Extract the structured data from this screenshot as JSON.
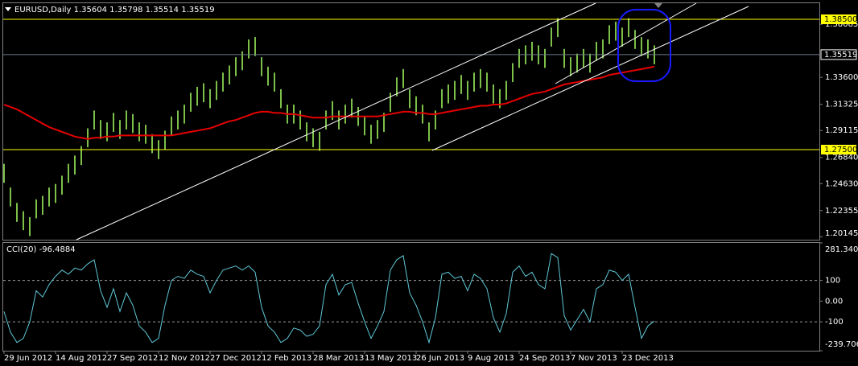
{
  "chart_data": [
    {
      "type": "ohlc",
      "title": "EURUSD,Daily 1.35604 1.35798 1.35514 1.35519",
      "color": "#7cc04a",
      "categories": [
        "29 Jun 2012",
        null,
        null,
        null,
        null,
        null,
        null,
        null,
        "14 Aug 2012",
        null,
        null,
        null,
        null,
        null,
        null,
        null,
        "27 Sep 2012",
        null,
        null,
        null,
        null,
        null,
        null,
        null,
        "12 Nov 2012",
        null,
        null,
        null,
        null,
        null,
        null,
        null,
        "27 Dec 2012",
        null,
        null,
        null,
        null,
        null,
        null,
        null,
        "12 Feb 2013",
        null,
        null,
        null,
        null,
        null,
        null,
        null,
        "28 Mar 2013",
        null,
        null,
        null,
        null,
        null,
        null,
        null,
        "13 May 2013",
        null,
        null,
        null,
        null,
        null,
        null,
        null,
        "26 Jun 2013",
        null,
        null,
        null,
        null,
        null,
        null,
        null,
        "9 Aug 2013",
        null,
        null,
        null,
        null,
        null,
        null,
        null,
        "24 Sep 2013",
        null,
        null,
        null,
        null,
        null,
        null,
        null,
        "7 Nov 2013",
        null,
        null,
        null,
        null,
        null,
        null,
        null,
        "23 Dec 2013",
        null,
        null,
        null,
        null,
        null
      ],
      "high": [
        1.263,
        1.243,
        1.23,
        1.223,
        1.218,
        1.233,
        1.236,
        1.243,
        1.246,
        1.253,
        1.263,
        1.27,
        1.278,
        1.293,
        1.308,
        1.3,
        1.298,
        1.306,
        1.3,
        1.308,
        1.305,
        1.298,
        1.296,
        1.288,
        1.283,
        1.291,
        1.303,
        1.308,
        1.313,
        1.323,
        1.328,
        1.331,
        1.326,
        1.333,
        1.34,
        1.346,
        1.353,
        1.358,
        1.368,
        1.37,
        1.353,
        1.345,
        1.34,
        1.326,
        1.313,
        1.313,
        1.308,
        1.298,
        1.293,
        1.29,
        1.308,
        1.316,
        1.308,
        1.313,
        1.318,
        1.311,
        1.303,
        1.296,
        1.3,
        1.306,
        1.323,
        1.336,
        1.343,
        1.326,
        1.32,
        1.313,
        1.298,
        1.308,
        1.326,
        1.33,
        1.333,
        1.338,
        1.333,
        1.34,
        1.343,
        1.34,
        1.33,
        1.326,
        1.333,
        1.348,
        1.36,
        1.363,
        1.366,
        1.363,
        1.36,
        1.378,
        1.386,
        1.36,
        1.353,
        1.356,
        1.36,
        1.356,
        1.366,
        1.368,
        1.38,
        1.383,
        1.378,
        1.386,
        1.376,
        1.37,
        1.368,
        1.363
      ],
      "low": [
        1.247,
        1.227,
        1.214,
        1.207,
        1.202,
        1.217,
        1.22,
        1.227,
        1.23,
        1.237,
        1.247,
        1.254,
        1.262,
        1.277,
        1.292,
        1.284,
        1.282,
        1.29,
        1.284,
        1.292,
        1.289,
        1.282,
        1.28,
        1.272,
        1.267,
        1.275,
        1.287,
        1.292,
        1.297,
        1.307,
        1.312,
        1.315,
        1.31,
        1.317,
        1.324,
        1.33,
        1.337,
        1.342,
        1.352,
        1.354,
        1.337,
        1.329,
        1.324,
        1.31,
        1.297,
        1.297,
        1.292,
        1.282,
        1.277,
        1.274,
        1.292,
        1.3,
        1.292,
        1.297,
        1.302,
        1.295,
        1.287,
        1.28,
        1.284,
        1.29,
        1.307,
        1.32,
        1.327,
        1.31,
        1.304,
        1.297,
        1.282,
        1.292,
        1.31,
        1.314,
        1.317,
        1.322,
        1.317,
        1.324,
        1.327,
        1.324,
        1.314,
        1.31,
        1.317,
        1.332,
        1.344,
        1.347,
        1.35,
        1.347,
        1.344,
        1.362,
        1.37,
        1.344,
        1.337,
        1.34,
        1.344,
        1.34,
        1.35,
        1.352,
        1.364,
        1.367,
        1.362,
        1.37,
        1.36,
        1.354,
        1.352,
        1.347
      ],
      "ma": {
        "color": "#e60000",
        "values": [
          1.313,
          1.311,
          1.309,
          1.306,
          1.303,
          1.3,
          1.297,
          1.294,
          1.292,
          1.29,
          1.288,
          1.286,
          1.285,
          1.284,
          1.285,
          1.285,
          1.286,
          1.286,
          1.287,
          1.287,
          1.287,
          1.287,
          1.287,
          1.287,
          1.287,
          1.287,
          1.287,
          1.288,
          1.289,
          1.29,
          1.291,
          1.292,
          1.293,
          1.295,
          1.297,
          1.299,
          1.3,
          1.302,
          1.304,
          1.306,
          1.307,
          1.307,
          1.306,
          1.306,
          1.305,
          1.305,
          1.304,
          1.303,
          1.302,
          1.302,
          1.302,
          1.303,
          1.303,
          1.303,
          1.303,
          1.303,
          1.303,
          1.303,
          1.303,
          1.304,
          1.305,
          1.306,
          1.307,
          1.307,
          1.306,
          1.306,
          1.305,
          1.305,
          1.306,
          1.307,
          1.308,
          1.309,
          1.31,
          1.311,
          1.312,
          1.312,
          1.313,
          1.313,
          1.314,
          1.316,
          1.318,
          1.32,
          1.322,
          1.323,
          1.324,
          1.326,
          1.328,
          1.33,
          1.331,
          1.332,
          1.333,
          1.334,
          1.335,
          1.336,
          1.338,
          1.339,
          1.34,
          1.341,
          1.342,
          1.343,
          1.344,
          1.345
        ]
      },
      "ylim": [
        1.19896,
        1.39858
      ],
      "yticks": [
        1.38085,
        {
          "value": 1.336,
          "label": "1.33600"
        },
        1.31325,
        1.29115,
        {
          "value": 1.2684,
          "label": "1.26840"
        },
        {
          "value": 1.2463,
          "label": "1.24630"
        },
        1.22355,
        1.20145
      ],
      "hlines": {
        "color": "#ffff00",
        "lines": [
          {
            "value": 1.385,
            "label": "1.38500"
          },
          {
            "value": 1.275,
            "label": "1.27500"
          }
        ]
      },
      "current_price": {
        "color": "#6c7a89",
        "value": 1.35519,
        "label": "1.35519"
      }
    },
    {
      "type": "line",
      "title": "CCI(20) -96.4884",
      "series": [
        {
          "color": "#5fc8d8",
          "values": [
            -50,
            -150,
            -200,
            -180,
            -100,
            50,
            20,
            80,
            120,
            150,
            130,
            160,
            150,
            180,
            200,
            50,
            -30,
            60,
            -50,
            40,
            -20,
            -120,
            -150,
            -200,
            -180,
            -20,
            100,
            120,
            110,
            150,
            130,
            120,
            40,
            100,
            150,
            160,
            170,
            150,
            170,
            140,
            -30,
            -120,
            -150,
            -200,
            -180,
            -130,
            -140,
            -170,
            -160,
            -120,
            80,
            130,
            30,
            80,
            90,
            -10,
            -100,
            -180,
            -120,
            -50,
            150,
            200,
            220,
            40,
            -20,
            -100,
            -200,
            -80,
            130,
            140,
            110,
            120,
            50,
            130,
            110,
            60,
            -80,
            -150,
            -60,
            140,
            170,
            120,
            140,
            80,
            60,
            230,
            210,
            -70,
            -140,
            -90,
            -40,
            -100,
            60,
            80,
            150,
            140,
            100,
            130,
            -30,
            -180,
            -120,
            -96.4884
          ]
        }
      ],
      "ylim": [
        -239.7069,
        281.3404
      ],
      "yticks": [
        281.3404,
        100,
        {
          "value": 0,
          "label": "0.00"
        },
        -100,
        -239.7069
      ],
      "levels": [
        100,
        -100
      ]
    }
  ]
}
